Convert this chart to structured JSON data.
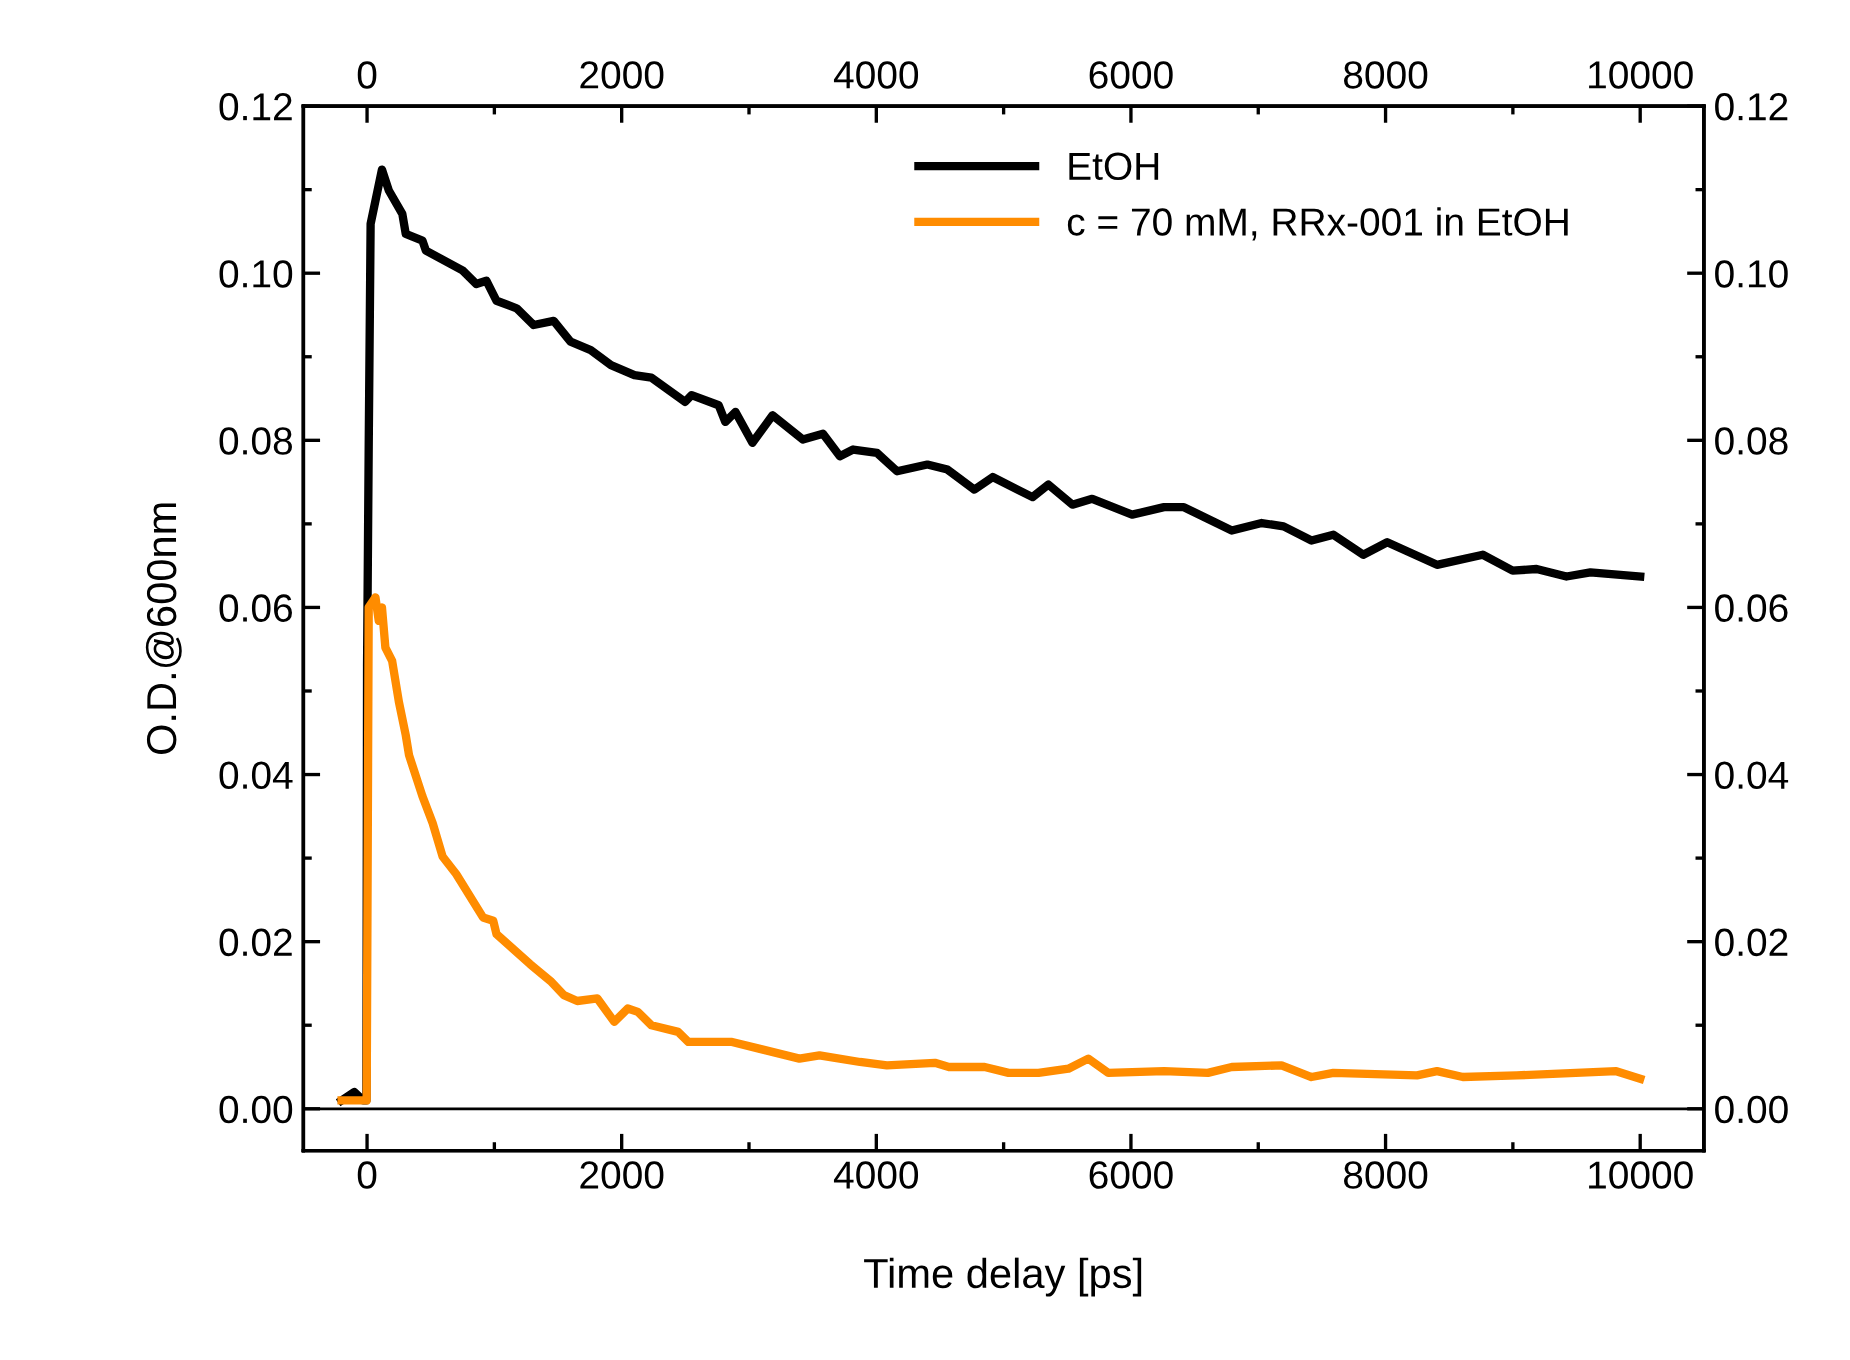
{
  "chart_data": {
    "type": "line",
    "xlabel": "Time delay [ps]",
    "ylabel": "O.D.@600nm",
    "xlim": [
      -500,
      10500
    ],
    "xticks": [
      0,
      2000,
      4000,
      6000,
      8000,
      10000
    ],
    "x2lim": [
      -500,
      10500
    ],
    "x2ticks": [
      0,
      2000,
      4000,
      6000,
      8000,
      10000
    ],
    "ylim": [
      -0.005,
      0.12
    ],
    "yticks": [
      {
        "value": 0,
        "label": "0.00"
      },
      {
        "value": 0.02,
        "label": "0.02"
      },
      {
        "value": 0.04,
        "label": "0.04"
      },
      {
        "value": 0.06,
        "label": "0.06"
      },
      {
        "value": 0.08,
        "label": "0.08"
      },
      {
        "value": 0.1,
        "label": "0.10"
      },
      {
        "value": 0.12,
        "label": "0.12"
      }
    ],
    "y2lim": [
      -0.005,
      0.12
    ],
    "y2ticks": [
      {
        "value": 0,
        "label": "0.00"
      },
      {
        "value": 0.02,
        "label": "0.02"
      },
      {
        "value": 0.04,
        "label": "0.04"
      },
      {
        "value": 0.06,
        "label": "0.06"
      },
      {
        "value": 0.08,
        "label": "0.08"
      },
      {
        "value": 0.1,
        "label": "0.10"
      },
      {
        "value": 0.12,
        "label": "0.12"
      }
    ],
    "grid": false,
    "legend": "top right",
    "marker": "none",
    "line_style": "solid",
    "ref_lines": [
      {
        "axis": "y",
        "value": 0,
        "color": "#000000"
      }
    ],
    "series": [
      {
        "name": "EtOH",
        "color": "#000000",
        "x": [
          -200,
          -100,
          -30,
          -5,
          0,
          13,
          28,
          117,
          171,
          277,
          304,
          435,
          462,
          753,
          858,
          937,
          1017,
          1175,
          1308,
          1466,
          1598,
          1757,
          1916,
          2100,
          2233,
          2498,
          2549,
          2762,
          2814,
          2894,
          3027,
          3185,
          3423,
          3581,
          3714,
          3818,
          4005,
          4163,
          4401,
          4559,
          4770,
          4914,
          5227,
          5352,
          5540,
          5696,
          6009,
          6260,
          6416,
          6792,
          7027,
          7199,
          7418,
          7590,
          7825,
          8013,
          8404,
          8764,
          8998,
          9186,
          9421,
          9609,
          10000
        ],
        "values": [
          0.001,
          0.002,
          0.001,
          0.001,
          0.053,
          0.0793,
          0.1059,
          0.1124,
          0.1099,
          0.1071,
          0.1047,
          0.1039,
          0.1027,
          0.1003,
          0.0987,
          0.0991,
          0.0967,
          0.0958,
          0.0938,
          0.0943,
          0.0918,
          0.0908,
          0.089,
          0.0878,
          0.0875,
          0.0846,
          0.0854,
          0.0842,
          0.0822,
          0.0834,
          0.0797,
          0.083,
          0.0801,
          0.0808,
          0.0781,
          0.0789,
          0.0785,
          0.0763,
          0.0771,
          0.0765,
          0.0741,
          0.0756,
          0.0732,
          0.0747,
          0.0723,
          0.073,
          0.0711,
          0.072,
          0.072,
          0.0692,
          0.0701,
          0.0697,
          0.068,
          0.0687,
          0.0663,
          0.0678,
          0.0651,
          0.0663,
          0.0644,
          0.0646,
          0.0637,
          0.0642,
          0.0637
        ]
      },
      {
        "name": "c = 70 mM, RRx-001 in EtOH",
        "color": "#ff8c00",
        "x": [
          -200,
          -100,
          -30,
          -3,
          13,
          66,
          92,
          117,
          144,
          197,
          250,
          304,
          330,
          435,
          515,
          593,
          700,
          911,
          991,
          1017,
          1281,
          1440,
          1546,
          1651,
          1809,
          1942,
          2048,
          2127,
          2233,
          2444,
          2524,
          2867,
          3078,
          3396,
          3554,
          3872,
          4083,
          4460,
          4570,
          4851,
          5039,
          5274,
          5509,
          5665,
          5822,
          6260,
          6604,
          6792,
          7183,
          7418,
          7590,
          8247,
          8404,
          8607,
          9030,
          9812,
          10000
        ],
        "values": [
          0.001,
          0.001,
          0.001,
          0.001,
          0.06,
          0.0612,
          0.0584,
          0.06,
          0.0552,
          0.0536,
          0.0487,
          0.0447,
          0.0423,
          0.0374,
          0.0342,
          0.0302,
          0.0281,
          0.0229,
          0.0225,
          0.0209,
          0.0173,
          0.0153,
          0.0136,
          0.0129,
          0.0132,
          0.0104,
          0.012,
          0.0116,
          0.01,
          0.0092,
          0.008,
          0.008,
          0.0072,
          0.006,
          0.0064,
          0.0056,
          0.0052,
          0.0055,
          0.005,
          0.005,
          0.0043,
          0.0043,
          0.0048,
          0.006,
          0.0043,
          0.0045,
          0.0043,
          0.005,
          0.0052,
          0.0038,
          0.0043,
          0.004,
          0.0045,
          0.0038,
          0.004,
          0.0045,
          0.0036
        ]
      }
    ]
  }
}
